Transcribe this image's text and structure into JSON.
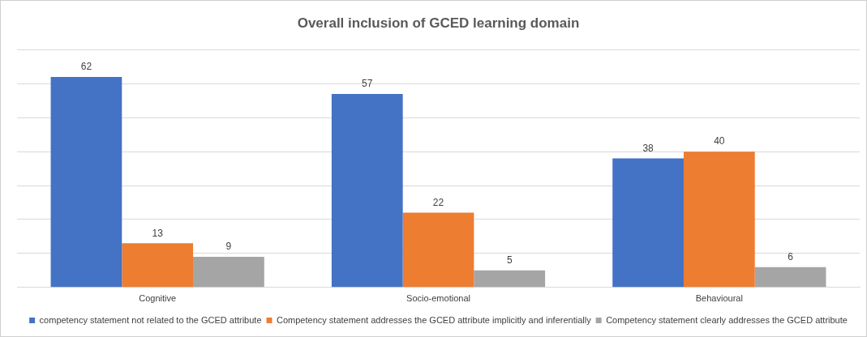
{
  "chart_data": {
    "type": "bar",
    "title": "Overall inclusion of GCED learning domain",
    "categories": [
      "Cognitive",
      "Socio-emotional",
      "Behavioural"
    ],
    "series": [
      {
        "name": "competency statement not related to the GCED attribute",
        "color": "#4472c4",
        "values": [
          62,
          57,
          38
        ]
      },
      {
        "name": "Competency statement addresses the GCED attribute implicitly and inferentially",
        "color": "#ed7d31",
        "values": [
          13,
          22,
          40
        ]
      },
      {
        "name": "Competency statement clearly addresses the GCED attribute",
        "color": "#a5a5a5",
        "values": [
          9,
          5,
          6
        ]
      }
    ],
    "ylim": [
      0,
      70
    ],
    "yticks": [
      0,
      10,
      20,
      30,
      40,
      50,
      60,
      70
    ],
    "grid": "y",
    "tick_labels": "x",
    "legend": "bottom",
    "data_labels": true
  }
}
